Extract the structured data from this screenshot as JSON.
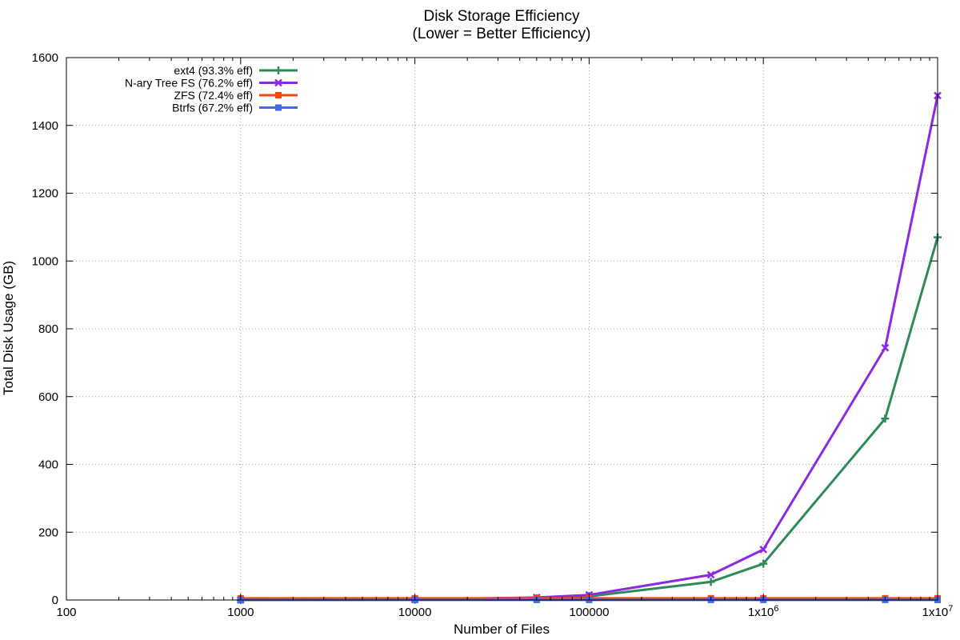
{
  "chart_data": {
    "type": "line",
    "title": "Disk Storage Efficiency",
    "subtitle": "(Lower = Better Efficiency)",
    "xlabel": "Number of Files",
    "ylabel": "Total Disk Usage (GB)",
    "xscale": "log",
    "xlim": [
      100,
      10000000
    ],
    "ylim": [
      0,
      1600
    ],
    "grid": true,
    "legend_position": "top-left",
    "xticks": [
      {
        "value": 100,
        "label": "100"
      },
      {
        "value": 1000,
        "label": "1000"
      },
      {
        "value": 10000,
        "label": "10000"
      },
      {
        "value": 100000,
        "label": "100000"
      },
      {
        "value": 1000000,
        "label": "1x10^6"
      },
      {
        "value": 10000000,
        "label": "1x10^7"
      }
    ],
    "yticks": [
      0,
      200,
      400,
      600,
      800,
      1000,
      1200,
      1400,
      1600
    ],
    "x": [
      1000,
      10000,
      50000,
      100000,
      500000,
      1000000,
      5000000,
      10000000
    ],
    "series": [
      {
        "name": "ext4 (93.3% eff)",
        "color": "#2e8b57",
        "marker": "plus",
        "values": [
          0.1,
          1,
          5,
          10.7,
          53.5,
          107,
          535,
          1070
        ]
      },
      {
        "name": "N-ary Tree FS (76.2% eff)",
        "color": "#8a2be2",
        "marker": "cross",
        "values": [
          0.15,
          1.5,
          7.4,
          14.9,
          74.4,
          149,
          744,
          1488
        ]
      },
      {
        "name": "ZFS (72.4% eff)",
        "color": "#ff4500",
        "marker": "square",
        "values": [
          5,
          5,
          5,
          5,
          5,
          5,
          5,
          5
        ]
      },
      {
        "name": "Btrfs (67.2% eff)",
        "color": "#4169e1",
        "marker": "square",
        "values": [
          0.3,
          0.3,
          0.3,
          0.3,
          0.3,
          0.3,
          0.3,
          0.3
        ]
      }
    ]
  }
}
